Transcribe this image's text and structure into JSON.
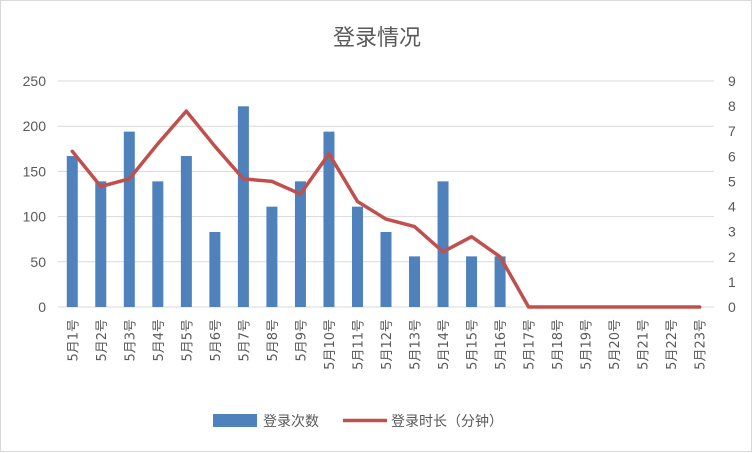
{
  "chart_data": {
    "type": "bar+line",
    "title": "登录情况",
    "categories": [
      "5月1号",
      "5月2号",
      "5月3号",
      "5月4号",
      "5月5号",
      "5月6号",
      "5月7号",
      "5月8号",
      "5月9号",
      "5月10号",
      "5月11号",
      "5月12号",
      "5月13号",
      "5月14号",
      "5月15号",
      "5月16号",
      "5月17号",
      "5月18号",
      "5月19号",
      "5月20号",
      "5月21号",
      "5月22号",
      "5月23号"
    ],
    "series": [
      {
        "name": "登录次数",
        "type": "bar",
        "axis": "left",
        "color": "#4f81bd",
        "values": [
          167,
          139,
          194,
          139,
          167,
          83,
          222,
          111,
          139,
          194,
          111,
          83,
          56,
          139,
          56,
          56,
          0,
          0,
          0,
          0,
          0,
          0,
          0
        ]
      },
      {
        "name": "登录时长（分钟）",
        "type": "line",
        "axis": "right",
        "color": "#c0504d",
        "values": [
          6.2,
          4.8,
          5.1,
          6.5,
          7.8,
          6.4,
          5.1,
          5.0,
          4.5,
          6.1,
          4.2,
          3.5,
          3.2,
          2.2,
          2.8,
          2.0,
          0,
          0,
          0,
          0,
          0,
          0,
          0
        ]
      }
    ],
    "y_left": {
      "min": 0,
      "max": 250,
      "ticks": [
        "0",
        "50",
        "100",
        "150",
        "200",
        "250"
      ]
    },
    "y_right": {
      "min": 0,
      "max": 9,
      "ticks": [
        "0",
        "1",
        "2",
        "3",
        "4",
        "5",
        "6",
        "7",
        "8",
        "9"
      ]
    },
    "grid": true,
    "legend_position": "bottom"
  }
}
